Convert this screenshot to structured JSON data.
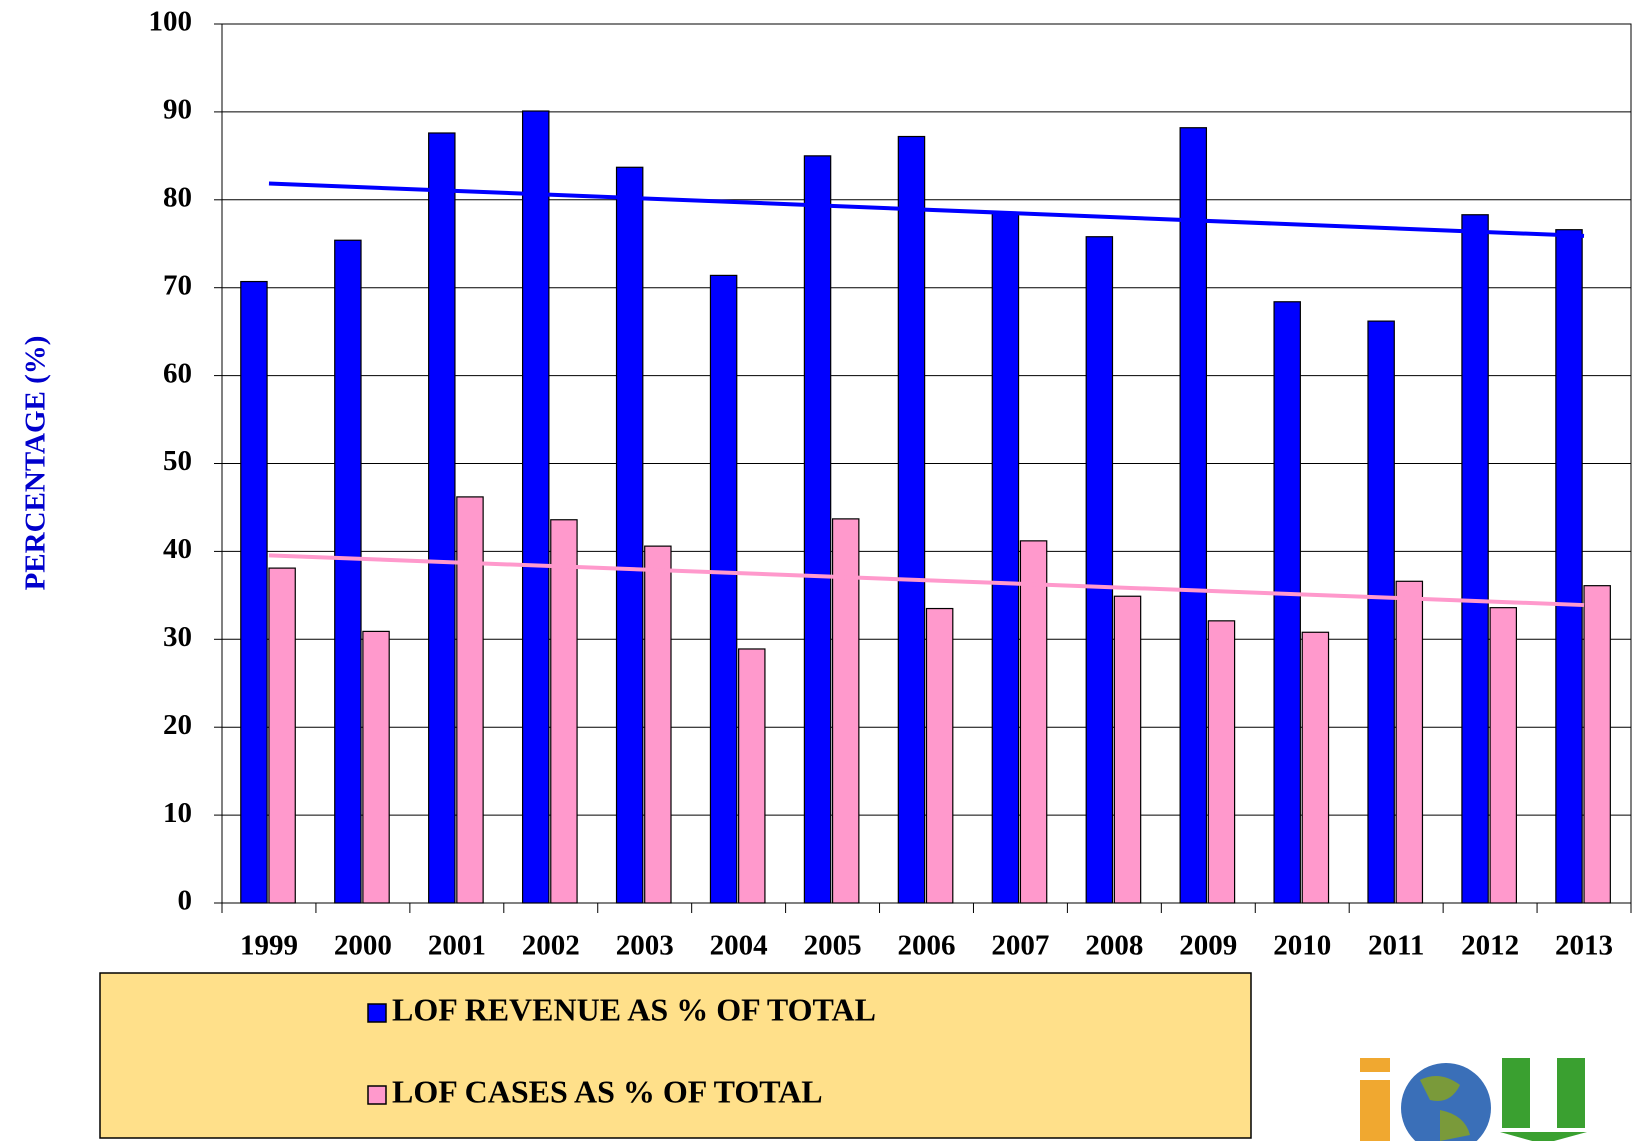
{
  "chart_data": {
    "type": "bar",
    "y_label": "PERCENTAGE (%)",
    "categories": [
      "1999",
      "2000",
      "2001",
      "2002",
      "2003",
      "2004",
      "2005",
      "2006",
      "2007",
      "2008",
      "2009",
      "2010",
      "2011",
      "2012",
      "2013"
    ],
    "series": [
      {
        "name": "LOF REVENUE AS % OF TOTAL",
        "color": "#0000ff",
        "values": [
          70.7,
          75.4,
          87.6,
          90.1,
          83.7,
          71.4,
          85.0,
          87.2,
          78.5,
          75.8,
          88.2,
          68.4,
          66.2,
          78.3,
          76.6
        ]
      },
      {
        "name": "LOF CASES AS % OF TOTAL",
        "color": "#ff99cc",
        "values": [
          38.1,
          30.9,
          46.2,
          43.6,
          40.6,
          28.9,
          43.7,
          33.5,
          41.2,
          34.9,
          32.1,
          30.8,
          36.6,
          33.6,
          36.1
        ]
      }
    ],
    "ylim": [
      0,
      100
    ],
    "yticks": [
      0,
      10,
      20,
      30,
      40,
      50,
      60,
      70,
      80,
      90,
      100
    ],
    "grid": true,
    "trendline": true,
    "legend": "bottom"
  }
}
